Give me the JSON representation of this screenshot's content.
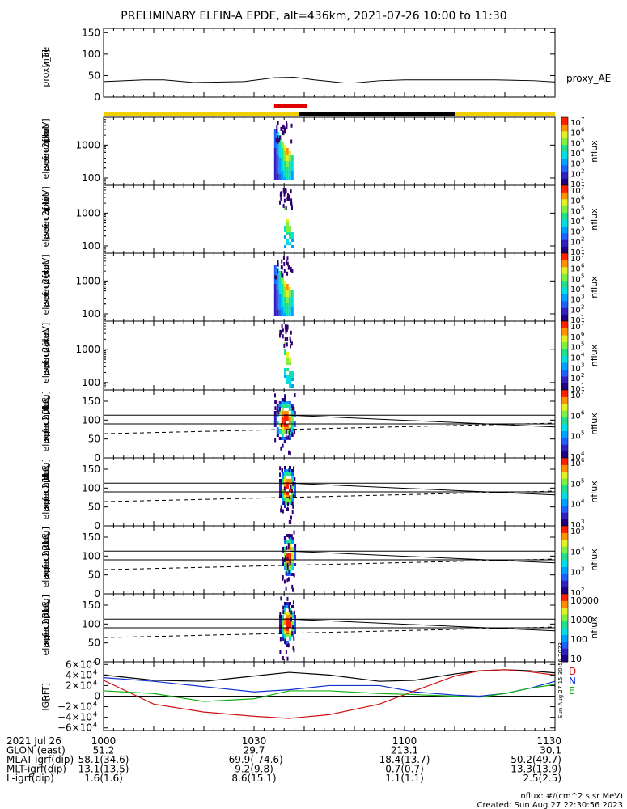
{
  "title": "PRELIMINARY ELFIN-A EPDE, alt=436km, 2021-07-26 10:00 to 11:30",
  "colors": {
    "yellow_bar": "#f0d000",
    "red_bar": "#e00000",
    "black_bar": "#000000",
    "trace_black": "#000000",
    "trace_blue": "#1030d0",
    "trace_red": "#d01010",
    "trace_green": "#10b010"
  },
  "chart_data": [
    {
      "type": "line",
      "panel": "proxy_ae",
      "ylabel": [
        "proxy_ae",
        "[nT]"
      ],
      "right_label": "proxy_AE",
      "ylim": [
        0,
        160
      ],
      "yticks": [
        "150",
        "100",
        "50",
        "0"
      ],
      "ytick_values": [
        150,
        100,
        50,
        0
      ],
      "x_min": [
        0,
        2,
        8,
        12,
        18,
        28,
        34,
        38,
        42,
        48,
        50,
        55,
        60,
        64,
        72,
        78,
        86,
        90
      ],
      "values": [
        36,
        37,
        40,
        40,
        34,
        36,
        45,
        46,
        40,
        33,
        33,
        38,
        40,
        40,
        40,
        40,
        38,
        35
      ]
    },
    {
      "type": "heatmap",
      "panel": "en_spec omni",
      "ylabel": [
        "ela",
        "pef",
        "en",
        "spec2plot",
        "omni",
        "[keV]"
      ],
      "ylog": true,
      "ylim": [
        60,
        7000
      ],
      "yticks": [
        "1000",
        "100"
      ],
      "ytick_values": [
        1000,
        100
      ],
      "colorbar": {
        "label": "nflux",
        "ticks": [
          "10",
          "10",
          "10",
          "10",
          "10",
          "10",
          "10"
        ],
        "exponents": [
          "7",
          "6",
          "5",
          "4",
          "3",
          "2",
          "1"
        ],
        "extra": "10"
      },
      "x_range_min": [
        34,
        37.5
      ]
    },
    {
      "type": "heatmap",
      "panel": "en_spec anti",
      "ylabel": [
        "ela",
        "pef",
        "en",
        "spec2plot",
        "anti",
        "[keV]"
      ],
      "ylog": true,
      "ylim": [
        60,
        7000
      ],
      "yticks": [
        "1000",
        "100"
      ],
      "ytick_values": [
        1000,
        100
      ],
      "colorbar": {
        "label": "nflux",
        "ticks": [
          "10",
          "10",
          "10",
          "10",
          "10",
          "10",
          "10"
        ],
        "exponents": [
          "7",
          "6",
          "5",
          "4",
          "3",
          "2",
          "1"
        ],
        "extra": "10"
      },
      "x_range_min": [
        35,
        37.5
      ]
    },
    {
      "type": "heatmap",
      "panel": "en_spec perp",
      "ylabel": [
        "ela",
        "pef",
        "en",
        "spec2plot",
        "perp",
        "[keV]"
      ],
      "ylog": true,
      "ylim": [
        60,
        7000
      ],
      "yticks": [
        "1000",
        "100"
      ],
      "ytick_values": [
        1000,
        100
      ],
      "colorbar": {
        "label": "nflux",
        "ticks": [
          "10",
          "10",
          "10",
          "10",
          "10",
          "10",
          "10"
        ],
        "exponents": [
          "7",
          "6",
          "5",
          "4",
          "3",
          "2",
          "1"
        ],
        "extra": "10"
      },
      "x_range_min": [
        34,
        37.5
      ]
    },
    {
      "type": "heatmap",
      "panel": "en_spec para",
      "ylabel": [
        "ela",
        "pef",
        "en",
        "spec2plot",
        "para",
        "[keV]"
      ],
      "ylog": true,
      "ylim": [
        60,
        7000
      ],
      "yticks": [
        "1000",
        "100"
      ],
      "ytick_values": [
        1000,
        100
      ],
      "colorbar": {
        "label": "nflux",
        "ticks": [
          "10",
          "10",
          "10",
          "10",
          "10",
          "10",
          "10"
        ],
        "exponents": [
          "7",
          "6",
          "5",
          "4",
          "3",
          "2",
          "1"
        ],
        "extra": "10"
      },
      "x_range_min": [
        35,
        37.5
      ]
    },
    {
      "type": "heatmap",
      "panel": "pa_spec ch0LC",
      "ylabel": [
        "ela",
        "pef",
        "pa",
        "spec2plot",
        "ch0LC",
        "[deg]"
      ],
      "ylim": [
        0,
        180
      ],
      "yticks": [
        "150",
        "100",
        "50",
        "0"
      ],
      "ytick_values": [
        150,
        100,
        50,
        0
      ],
      "colorbar": {
        "label": "nflux",
        "ticks": [
          "10",
          "10",
          "10"
        ],
        "exponents": [
          "7",
          "6",
          "5",
          "4"
        ],
        "count": 4
      },
      "lines": {
        "upper": [
          113,
          82
        ],
        "middle": [
          90,
          90
        ],
        "dashed": [
          64,
          92
        ]
      },
      "x_range_min": [
        34,
        38
      ]
    },
    {
      "type": "heatmap",
      "panel": "pa_spec ch1LC",
      "ylabel": [
        "ela",
        "pef",
        "pa",
        "spec2plot",
        "ch1LC",
        "[deg]"
      ],
      "ylim": [
        0,
        180
      ],
      "yticks": [
        "150",
        "100",
        "50",
        "0"
      ],
      "ytick_values": [
        150,
        100,
        50,
        0
      ],
      "colorbar": {
        "label": "nflux",
        "exponents": [
          "6",
          "5",
          "4",
          "3"
        ]
      },
      "lines": {
        "upper": [
          113,
          82
        ],
        "middle": [
          90,
          90
        ],
        "dashed": [
          64,
          92
        ]
      },
      "x_range_min": [
        35,
        38
      ]
    },
    {
      "type": "heatmap",
      "panel": "pa_spec ch2LC",
      "ylabel": [
        "ela",
        "pef",
        "pa",
        "spec2plot",
        "ch2LC",
        "[deg]"
      ],
      "ylim": [
        0,
        180
      ],
      "yticks": [
        "150",
        "100",
        "50",
        "0"
      ],
      "ytick_values": [
        150,
        100,
        50,
        0
      ],
      "colorbar": {
        "label": "nflux",
        "exponents": [
          "5",
          "4",
          "3",
          "2"
        ]
      },
      "lines": {
        "upper": [
          113,
          82
        ],
        "middle": [
          90,
          90
        ],
        "dashed": [
          64,
          92
        ]
      },
      "x_range_min": [
        35.5,
        38
      ]
    },
    {
      "type": "heatmap",
      "panel": "pa_spec ch3LC",
      "ylabel": [
        "ela",
        "pef",
        "pa",
        "spec2plot",
        "ch3LC",
        "[deg]"
      ],
      "ylim": [
        0,
        180
      ],
      "yticks": [
        "150",
        "100",
        "50",
        "0"
      ],
      "ytick_values": [
        150,
        100,
        50,
        0
      ],
      "colorbar": {
        "label": "nflux",
        "ticks": [
          "10000",
          "1000",
          "100",
          "10"
        ]
      },
      "lines": {
        "upper": [
          113,
          82
        ],
        "middle": [
          90,
          90
        ],
        "dashed": [
          64,
          92
        ]
      },
      "x_range_min": [
        35,
        38
      ]
    },
    {
      "type": "line",
      "panel": "GRF",
      "ylabel": [
        "IGRF",
        "[nT]"
      ],
      "ylim": [
        -65000,
        65000
      ],
      "yticks": [
        "6×10",
        "4×10",
        "2×10",
        "0",
        "−2×10",
        "−4×10",
        "−6×10"
      ],
      "ytick_exp": "4",
      "ytick_values": [
        60000,
        40000,
        20000,
        0,
        -20000,
        -40000,
        -60000
      ],
      "legend": [
        "D",
        "N",
        "E"
      ],
      "stamp": "Sun Aug 27 15:30:56 2023",
      "x_min": [
        0,
        10,
        20,
        30,
        37,
        45,
        55,
        62,
        70,
        75,
        80,
        85,
        90
      ],
      "series": [
        {
          "name": "D",
          "color": "trace_black",
          "values": [
            40000,
            30000,
            28000,
            38000,
            45000,
            40000,
            28000,
            30000,
            42000,
            48000,
            50000,
            48000,
            44000
          ]
        },
        {
          "name": "N",
          "color": "trace_blue",
          "values": [
            35000,
            28000,
            18000,
            8000,
            12000,
            20000,
            20000,
            8000,
            2000,
            0,
            5000,
            15000,
            28000
          ]
        },
        {
          "name": "E",
          "color": "trace_red",
          "values": [
            30000,
            -15000,
            -30000,
            -38000,
            -42000,
            -35000,
            -15000,
            10000,
            38000,
            48000,
            50000,
            46000,
            40000
          ]
        },
        {
          "name": "",
          "color": "trace_green",
          "values": [
            10000,
            5000,
            -10000,
            -5000,
            10000,
            10000,
            5000,
            3000,
            0,
            -2000,
            5000,
            15000,
            22000
          ]
        }
      ]
    }
  ],
  "time_axis": {
    "labels": [
      "1000",
      "1030",
      "1100",
      "1130"
    ],
    "label_minutes": [
      0,
      30,
      60,
      90
    ]
  },
  "ephemeris": {
    "rows": [
      {
        "label": "2021 Jul 26",
        "values": [
          "1000",
          "1030",
          "1100",
          "1130"
        ]
      },
      {
        "label": "GLON (east)",
        "values": [
          "51.2",
          "29.7",
          "213.1",
          "30.1"
        ]
      },
      {
        "label": "MLAT-igrf(dip)",
        "values": [
          "58.1(34.6)",
          "-69.9(-74.6)",
          "18.4(13.7)",
          "50.2(49.7)"
        ]
      },
      {
        "label": "MLT-igrf(dip)",
        "values": [
          "13.1(13.5)",
          "9.2(9.8)",
          "0.7(0.7)",
          "13.3(13.9)"
        ]
      },
      {
        "label": "L-igrf(dip)",
        "values": [
          "1.6(1.6)",
          "8.6(15.1)",
          "1.1(1.1)",
          "2.5(2.5)"
        ]
      }
    ]
  },
  "footer": {
    "units": "nflux: #/(cm^2 s sr MeV)",
    "created": "Created: Sun Aug 27 22:30:56 2023"
  },
  "status_bar": {
    "segments": [
      {
        "color": "yellow_bar",
        "from_min": 0,
        "to_min": 39
      },
      {
        "color": "black_bar",
        "from_min": 39,
        "to_min": 70
      },
      {
        "color": "yellow_bar",
        "from_min": 70,
        "to_min": 90
      }
    ],
    "red_from_min": 34,
    "red_to_min": 40.5
  }
}
